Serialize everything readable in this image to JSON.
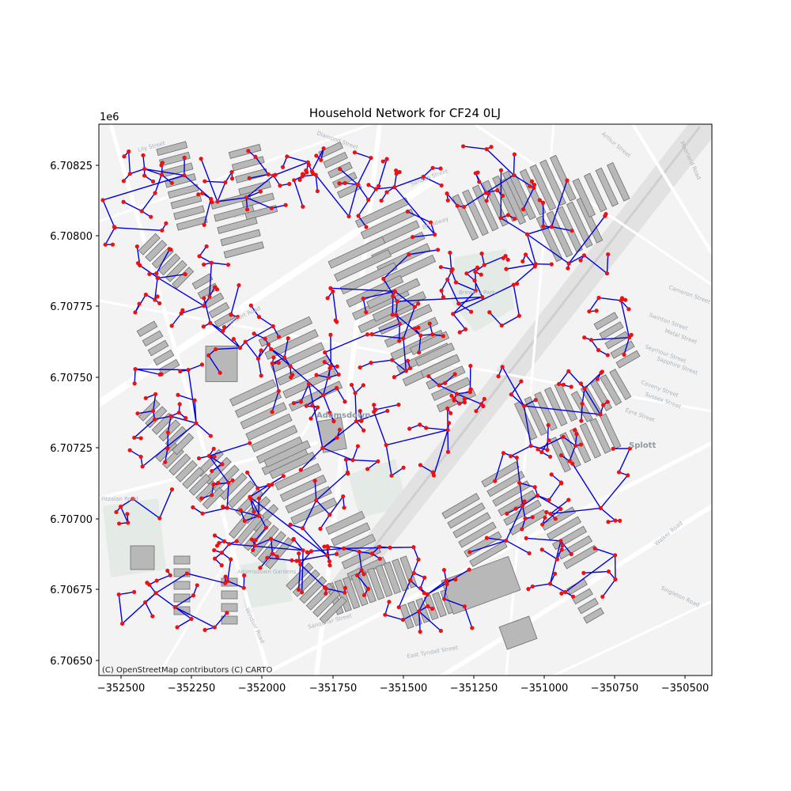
{
  "title": "Household Network for CF24 0LJ",
  "y_offset_label": "1e6",
  "attribution": "(C) OpenStreetMap contributors (C) CARTO",
  "colors": {
    "background": "#f3f3f3",
    "road": "#ffffff",
    "building_fill": "#b8b8b8",
    "building_stroke": "#6e6e6e",
    "network_edge": "#0000dd",
    "household_node": "#ee1111",
    "park": "#e6ede8",
    "rail": "#dcdcdc"
  },
  "x_ticks": [
    "−352500",
    "−352250",
    "−352000",
    "−351750",
    "−351500",
    "−351250",
    "−351000",
    "−350750",
    "−350500"
  ],
  "y_ticks": [
    "6.70825",
    "6.70800",
    "6.70775",
    "6.70750",
    "6.70725",
    "6.70700",
    "6.70675",
    "6.70650"
  ],
  "street_labels": [
    "Ellis Street",
    "Newport Road",
    "Broadway",
    "Adamsdown",
    "Adamsdown Gardens",
    "Windsor Road",
    "Sanquhar Street",
    "East Tyndall Street",
    "Walker Road",
    "Splott",
    "Moorland Road",
    "Cameron Street",
    "Fitzalan Road",
    "Metal Street",
    "Sapphire Street",
    "Singleton Road",
    "Sussex Street",
    "Eyre Street",
    "Coveny Street",
    "Swinton Street",
    "Seymour Street",
    "Arthur Street",
    "Diamond Street",
    "Lily Street",
    "Sandon Street",
    "Brewery Park"
  ],
  "map_data": {
    "type": "network-map",
    "crs_units": "metres (Web Mercator)",
    "x_range": [
      -352550,
      -350380
    ],
    "y_range": [
      6706450,
      6708400
    ],
    "description_nodes": "households (red points) linked by a network (blue lines) over building footprints"
  }
}
